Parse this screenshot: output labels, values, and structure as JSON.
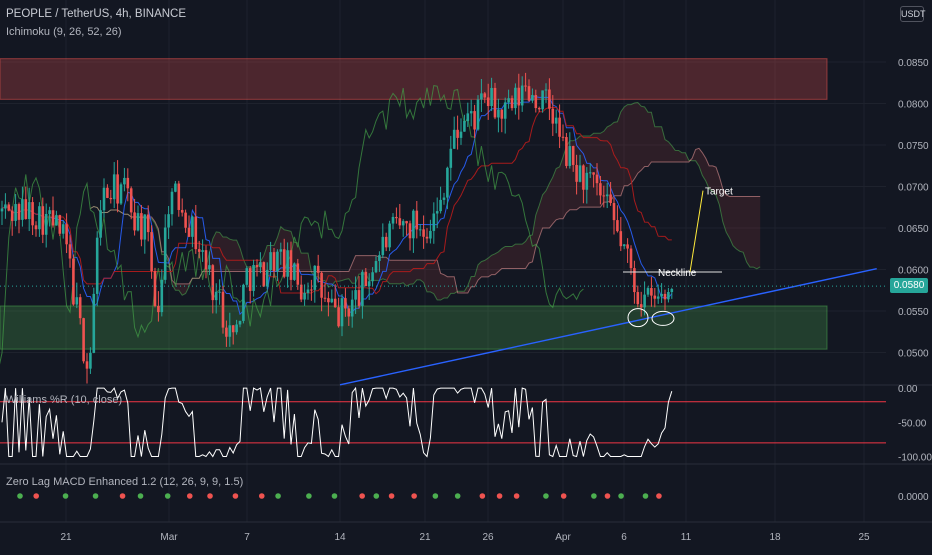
{
  "header": {
    "title": "PEOPLE / TetherUS, 4h, BINANCE",
    "indicator": "Ichimoku (9, 26, 52, 26)",
    "currency_button": "USDT"
  },
  "price_tag": "0.0580",
  "annotations": {
    "target": "Target",
    "neckline": "Neckline"
  },
  "panes": {
    "williams_label": "Williams %R (10, close)",
    "macd_label": "Zero Lag MACD Enhanced 1.2 (12, 26, 9, 9, 1.5)"
  },
  "colors": {
    "background": "#131722",
    "up": "#26a69a",
    "down": "#ef5350",
    "trendline": "#2962ff",
    "resistance_zone": "#ef5350",
    "support_zone": "#4caf50",
    "williams_line": "#ffffff",
    "williams_bands": "#f23645"
  },
  "chart_data": [
    {
      "type": "candlestick",
      "title": "PEOPLE / TetherUS, 4h, BINANCE",
      "y_axis_ticks": [
        "0.0850",
        "0.0800",
        "0.0750",
        "0.0700",
        "0.0650",
        "0.0600",
        "0.0550",
        "0.0500"
      ],
      "x_axis_ticks": [
        "21",
        "Mar",
        "7",
        "14",
        "21",
        "26",
        "Apr",
        "6",
        "11",
        "18",
        "25"
      ],
      "ylim": [
        0.0462,
        0.0903
      ],
      "last_price": 0.058,
      "zones": [
        {
          "name": "resistance",
          "from": 0.0805,
          "to": 0.0854
        },
        {
          "name": "support",
          "from": 0.0504,
          "to": 0.0556
        }
      ],
      "trendline": [
        {
          "x": "Mar 14",
          "y": 0.0461
        },
        {
          "x": "Apr 26",
          "y": 0.0601
        }
      ],
      "neckline": 0.0597,
      "target_projection": {
        "from": 0.0597,
        "to": 0.0695
      },
      "price_path": [
        [
          "Feb 17",
          0.067
        ],
        [
          "Feb 19",
          0.0655
        ],
        [
          "Feb 20",
          0.063
        ],
        [
          "Feb 21",
          0.0545
        ],
        [
          "Feb 22",
          0.0475
        ],
        [
          "Feb 23",
          0.0685
        ],
        [
          "Feb 25",
          0.07
        ],
        [
          "Feb 26",
          0.0665
        ],
        [
          "Feb 27",
          0.0645
        ],
        [
          "Feb 28",
          0.0545
        ],
        [
          "Mar 1",
          0.069
        ],
        [
          "Mar 2",
          0.068
        ],
        [
          "Mar 3",
          0.064
        ],
        [
          "Mar 5",
          0.0555
        ],
        [
          "Mar 6",
          0.0515
        ],
        [
          "Mar 7",
          0.0595
        ],
        [
          "Mar 8",
          0.0595
        ],
        [
          "Mar 9",
          0.0615
        ],
        [
          "Mar 10",
          0.0605
        ],
        [
          "Mar 11",
          0.0575
        ],
        [
          "Mar 12",
          0.0595
        ],
        [
          "Mar 13",
          0.0555
        ],
        [
          "Mar 14",
          0.0545
        ],
        [
          "Mar 15",
          0.056
        ],
        [
          "Mar 16",
          0.058
        ],
        [
          "Mar 17",
          0.0615
        ],
        [
          "Mar 18",
          0.064
        ],
        [
          "Mar 19",
          0.065
        ],
        [
          "Mar 20",
          0.0655
        ],
        [
          "Mar 21",
          0.0655
        ],
        [
          "Mar 22",
          0.0665
        ],
        [
          "Mar 23",
          0.0745
        ],
        [
          "Mar 24",
          0.078
        ],
        [
          "Mar 25",
          0.0785
        ],
        [
          "Mar 26",
          0.0805
        ],
        [
          "Mar 27",
          0.0785
        ],
        [
          "Mar 28",
          0.0795
        ],
        [
          "Mar 29",
          0.082
        ],
        [
          "Mar 30",
          0.0805
        ],
        [
          "Mar 31",
          0.0795
        ],
        [
          "Apr 1",
          0.0745
        ],
        [
          "Apr 2",
          0.072
        ],
        [
          "Apr 3",
          0.0705
        ],
        [
          "Apr 4",
          0.069
        ],
        [
          "Apr 5",
          0.066
        ],
        [
          "Apr 6",
          0.0625
        ],
        [
          "Apr 7",
          0.0575
        ],
        [
          "Apr 8",
          0.056
        ],
        [
          "Apr 9",
          0.0565
        ],
        [
          "Apr 10",
          0.058
        ]
      ]
    },
    {
      "type": "line",
      "title": "Williams %R (10, close)",
      "y_axis_ticks": [
        "0.00",
        "-50.00",
        "-100.00"
      ],
      "ylim": [
        -108,
        3
      ],
      "bands": [
        -80,
        -20
      ]
    },
    {
      "type": "scatter",
      "title": "Zero Lag MACD Enhanced 1.2 (12, 26, 9, 9, 1.5)",
      "y_axis_ticks": [
        "0.0000"
      ],
      "dot_colors": [
        "red",
        "green"
      ]
    }
  ]
}
